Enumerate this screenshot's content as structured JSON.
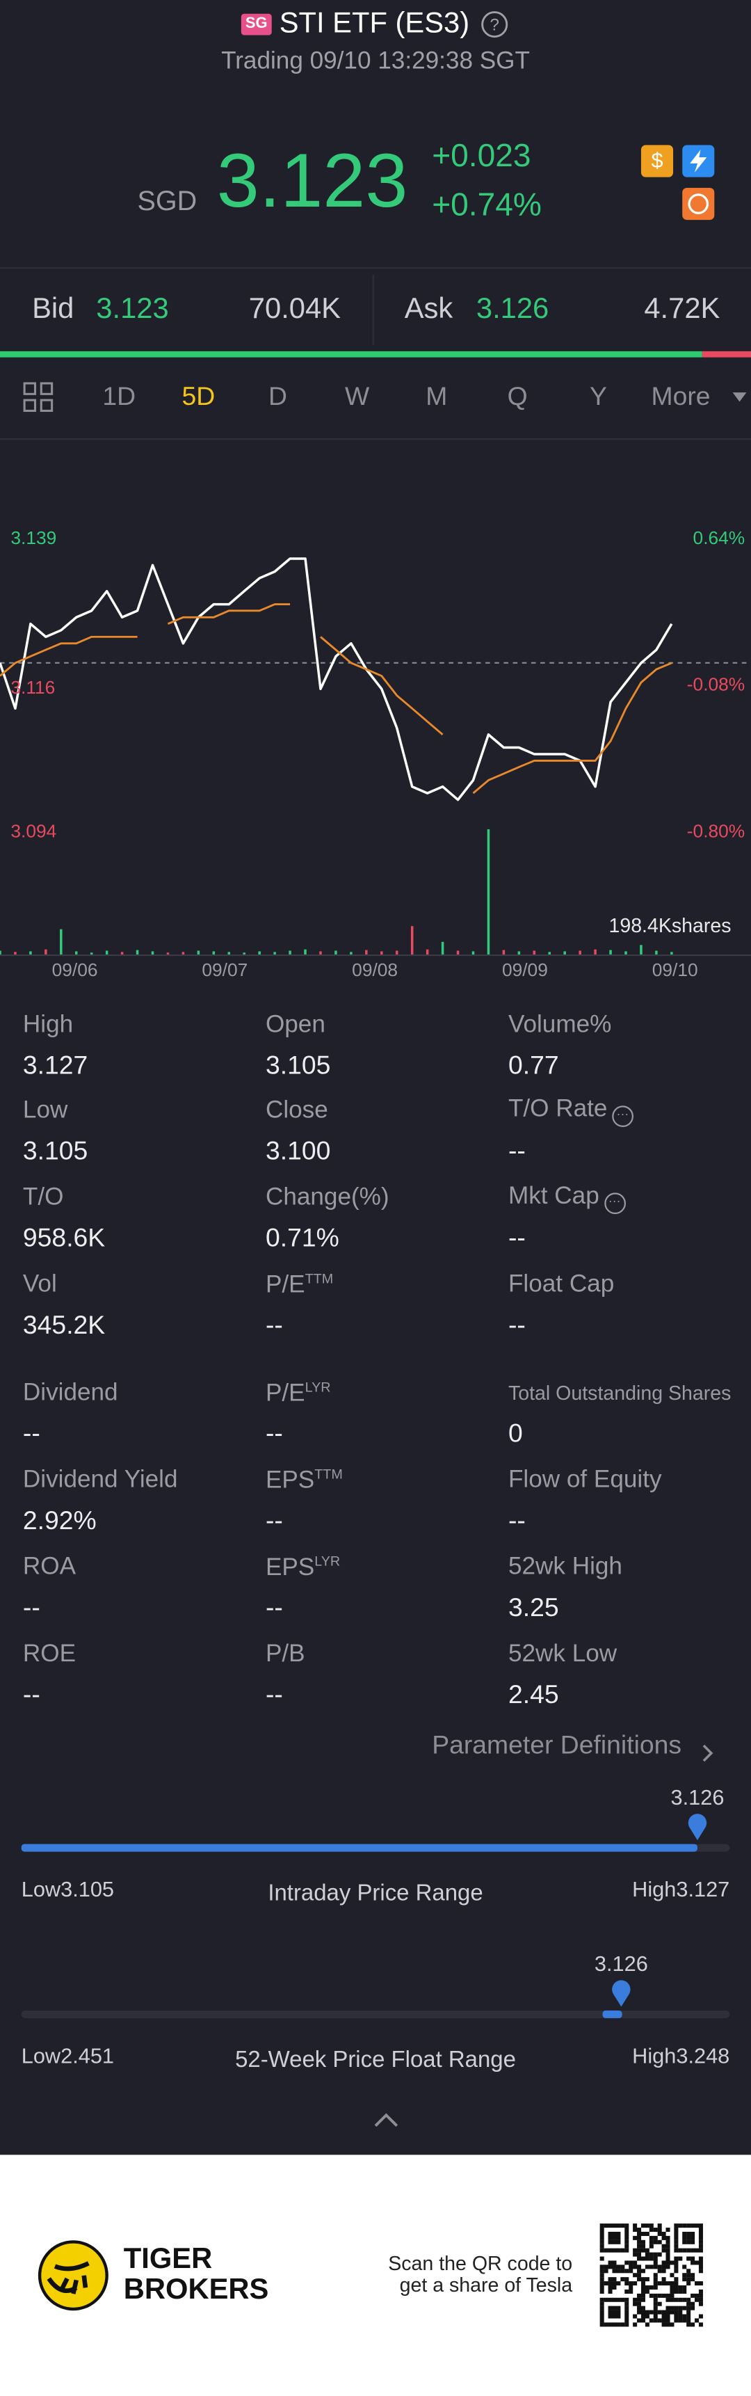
{
  "header": {
    "badge": "SG",
    "title": "STI ETF (ES3)",
    "status": "Trading 09/10 13:29:38 SGT"
  },
  "quote": {
    "currency": "SGD",
    "price": "3.123",
    "change": "+0.023",
    "change_pct": "+0.74%"
  },
  "order_book": {
    "bid_label": "Bid",
    "bid_price": "3.123",
    "bid_size": "70.04K",
    "ask_label": "Ask",
    "ask_price": "3.126",
    "ask_size": "4.72K"
  },
  "tabs": [
    "1D",
    "5D",
    "D",
    "W",
    "M",
    "Q",
    "Y",
    "More"
  ],
  "active_tab": 1,
  "chart_data": {
    "type": "line",
    "x_labels": [
      "09/06",
      "09/07",
      "09/08",
      "09/09",
      "09/10"
    ],
    "ylim": [
      3.094,
      3.139
    ],
    "yticks": [
      3.139,
      3.116,
      3.094
    ],
    "y2lim": [
      -0.8,
      0.64
    ],
    "y2ticks": [
      {
        "value": 0.64,
        "label": "0.64%"
      },
      {
        "value": -0.08,
        "label": "-0.08%"
      },
      {
        "value": -0.8,
        "label": "-0.80%"
      }
    ],
    "ref_line": 3.12,
    "series": [
      {
        "name": "Price",
        "color": "#ffffff",
        "values": [
          3.12,
          3.113,
          3.126,
          3.124,
          3.125,
          3.127,
          3.128,
          3.131,
          3.127,
          3.128,
          3.135,
          3.129,
          3.123,
          3.127,
          3.129,
          3.129,
          3.131,
          3.133,
          3.134,
          3.136,
          3.136,
          3.116,
          3.121,
          3.123,
          3.119,
          3.116,
          3.11,
          3.101,
          3.1,
          3.101,
          3.099,
          3.102,
          3.109,
          3.107,
          3.107,
          3.106,
          3.106,
          3.106,
          3.105,
          3.101,
          3.114,
          3.117,
          3.12,
          3.122,
          3.126
        ]
      },
      {
        "name": "Average",
        "color": "#e8892b",
        "values": [
          3.118,
          3.12,
          3.121,
          3.122,
          3.123,
          3.123,
          3.124,
          3.124,
          3.124,
          3.124,
          null,
          3.126,
          3.127,
          3.127,
          3.127,
          3.128,
          3.128,
          3.128,
          3.129,
          3.129,
          null,
          3.124,
          3.122,
          3.12,
          3.119,
          3.118,
          3.115,
          3.113,
          3.111,
          3.109,
          null,
          3.1,
          3.102,
          3.103,
          3.104,
          3.105,
          3.105,
          3.105,
          3.105,
          3.105,
          3.108,
          3.113,
          3.117,
          3.119,
          3.12
        ]
      }
    ],
    "volume": [
      6,
      4,
      5,
      8,
      40,
      5,
      3,
      6,
      4,
      7,
      5,
      3,
      4,
      6,
      5,
      4,
      3,
      5,
      4,
      6,
      8,
      5,
      6,
      4,
      7,
      5,
      6,
      45,
      8,
      20,
      6,
      5,
      198.4,
      7,
      5,
      6,
      4,
      5,
      6,
      8,
      7,
      5,
      15,
      6,
      4
    ],
    "volume_label": "198.4Kshares"
  },
  "stats": [
    [
      {
        "label": "High",
        "value": "3.127"
      },
      {
        "label": "Open",
        "value": "3.105"
      },
      {
        "label": "Volume%",
        "value": "0.77"
      }
    ],
    [
      {
        "label": "Low",
        "value": "3.105"
      },
      {
        "label": "Close",
        "value": "3.100"
      },
      {
        "label": "T/O Rate",
        "value": "--",
        "info": true
      }
    ],
    [
      {
        "label": "T/O",
        "value": "958.6K"
      },
      {
        "label": "Change(%)",
        "value": "0.71%"
      },
      {
        "label": "Mkt Cap",
        "value": "--",
        "info": true
      }
    ],
    [
      {
        "label": "Vol",
        "value": "345.2K"
      },
      {
        "label": "P/E",
        "sup": "TTM",
        "value": "--"
      },
      {
        "label": "Float Cap",
        "value": "--"
      }
    ],
    [
      {
        "label": "Dividend",
        "value": "--"
      },
      {
        "label": "P/E",
        "sup": "LYR",
        "value": "--"
      },
      {
        "label": "Total Outstanding Shares",
        "value": "0",
        "small": true
      }
    ],
    [
      {
        "label": "Dividend Yield",
        "value": "2.92%"
      },
      {
        "label": "EPS",
        "sup": "TTM",
        "value": "--"
      },
      {
        "label": "Flow of Equity",
        "value": "--"
      }
    ],
    [
      {
        "label": "ROA",
        "value": "--"
      },
      {
        "label": "EPS",
        "sup": "LYR",
        "value": "--"
      },
      {
        "label": "52wk High",
        "value": "3.25"
      }
    ],
    [
      {
        "label": "ROE",
        "value": "--"
      },
      {
        "label": "P/B",
        "value": "--"
      },
      {
        "label": "52wk Low",
        "value": "2.45"
      }
    ]
  ],
  "parameter_link": "Parameter Definitions",
  "ranges": [
    {
      "current": 3.126,
      "low": {
        "value": 3.105,
        "label": "Low3.105"
      },
      "high": {
        "value": 3.127,
        "label": "High3.127"
      },
      "title": "Intraday Price Range"
    },
    {
      "current": 3.126,
      "low": {
        "value": 2.451,
        "label": "Low2.451"
      },
      "high": {
        "value": 3.248,
        "label": "High3.248"
      },
      "title": "52-Week Price Float Range"
    }
  ],
  "footer": {
    "brand": [
      "TIGER",
      "BROKERS"
    ],
    "cta": [
      "Scan the QR code to",
      "get a share of Tesla"
    ]
  }
}
